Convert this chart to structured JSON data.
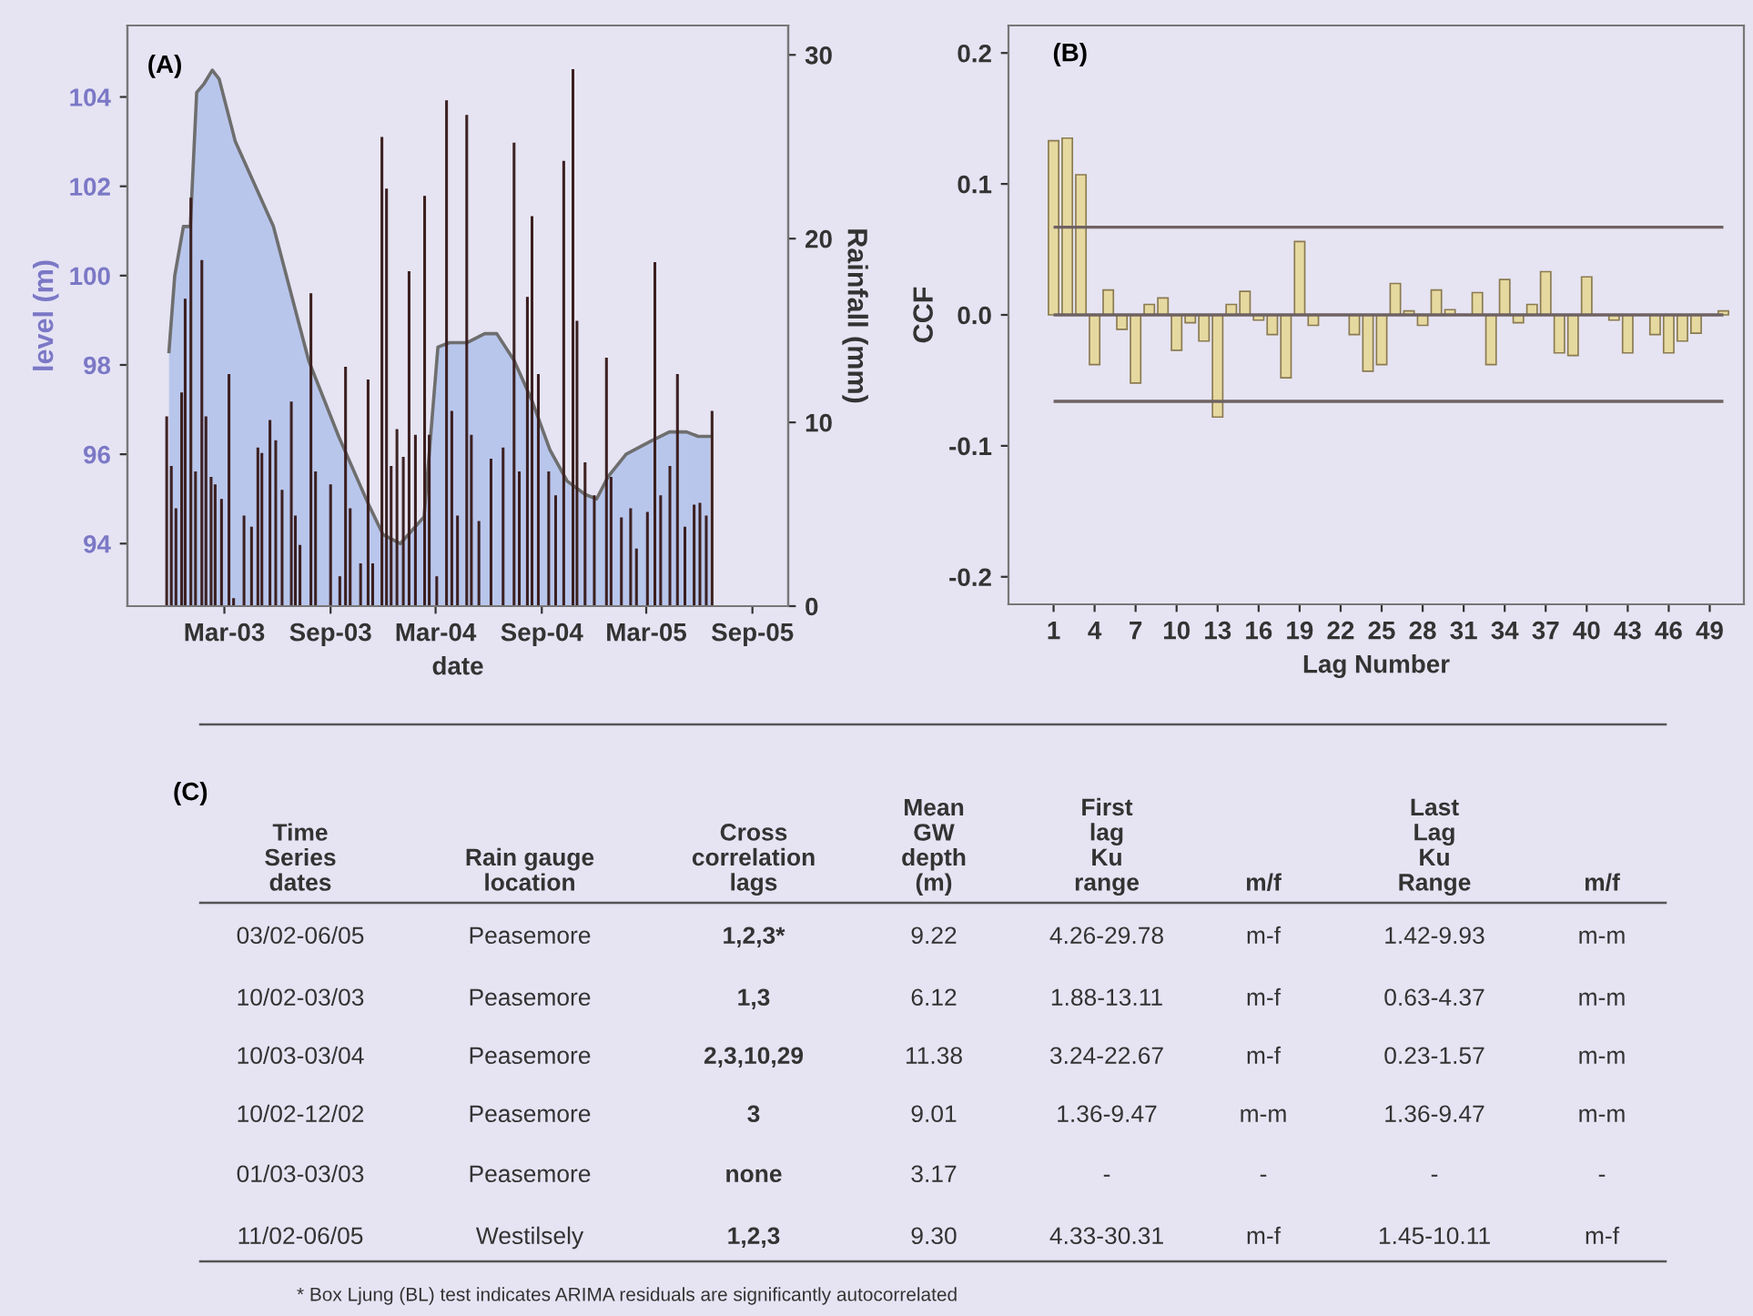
{
  "chart_data": [
    {
      "type": "area",
      "annotations": [
        "(A)"
      ],
      "xlabel": "date",
      "ylabel": "level (m)",
      "y2label": "Rainfall (mm)",
      "xlim": [
        "2002-09-14",
        "2005-11-02"
      ],
      "xticks": [
        {
          "value": "2003-03-01",
          "label": "Mar-03"
        },
        {
          "value": "2003-09-01",
          "label": "Sep-03"
        },
        {
          "value": "2004-03-01",
          "label": "Mar-04"
        },
        {
          "value": "2004-09-01",
          "label": "Sep-04"
        },
        {
          "value": "2005-03-01",
          "label": "Mar-05"
        },
        {
          "value": "2005-09-01",
          "label": "Sep-05"
        }
      ],
      "ylim": [
        92.6,
        105.6
      ],
      "yticks": [
        94,
        96,
        98,
        100,
        102,
        104
      ],
      "y2lim": [
        0,
        31.6
      ],
      "y2ticks": [
        0,
        10,
        20,
        30
      ],
      "series": [
        {
          "type": "area",
          "color": "#b9c6ec",
          "x": [
            "2002-11-25",
            "2002-12-05",
            "2002-12-20",
            "2003-01-01",
            "2003-01-12",
            "2003-01-25",
            "2003-02-08",
            "2003-02-20",
            "2003-03-20",
            "2003-05-25",
            "2003-07-25",
            "2003-09-15",
            "2003-11-05",
            "2003-12-01",
            "2003-12-31",
            "2004-02-10",
            "2004-03-05",
            "2004-03-25",
            "2004-04-25",
            "2004-05-25",
            "2004-06-15",
            "2004-07-15",
            "2004-08-15",
            "2004-09-15",
            "2004-10-15",
            "2004-11-15",
            "2004-12-05",
            "2004-12-25",
            "2005-01-25",
            "2005-03-10",
            "2005-04-10",
            "2005-05-10",
            "2005-05-30",
            "2005-06-20"
          ],
          "values": [
            98.3,
            100.0,
            101.1,
            101.1,
            104.1,
            104.3,
            104.6,
            104.4,
            103.0,
            101.1,
            98.1,
            96.4,
            94.9,
            94.2,
            94.0,
            94.6,
            98.4,
            98.5,
            98.5,
            98.7,
            98.7,
            98.1,
            97.2,
            96.1,
            95.4,
            95.1,
            95.0,
            95.5,
            96.0,
            96.3,
            96.5,
            96.5,
            96.4,
            96.4
          ]
        },
        {
          "type": "bar",
          "axis": "y2",
          "color": "#3b1f1f",
          "x": [
            "2002-11-21",
            "2002-11-29",
            "2002-12-07",
            "2002-12-17",
            "2002-12-23",
            "2003-01-02",
            "2003-01-10",
            "2003-01-21",
            "2003-01-28",
            "2003-02-06",
            "2003-02-13",
            "2003-02-24",
            "2003-03-09",
            "2003-03-17",
            "2003-04-04",
            "2003-04-17",
            "2003-04-28",
            "2003-05-05",
            "2003-05-19",
            "2003-05-29",
            "2003-06-09",
            "2003-06-25",
            "2003-07-02",
            "2003-07-10",
            "2003-07-29",
            "2003-08-06",
            "2003-09-01",
            "2003-09-17",
            "2003-09-27",
            "2003-10-05",
            "2003-10-23",
            "2003-11-05",
            "2003-11-13",
            "2003-11-29",
            "2003-12-07",
            "2003-12-15",
            "2003-12-25",
            "2004-01-05",
            "2004-01-15",
            "2004-01-26",
            "2004-02-11",
            "2004-02-19",
            "2004-03-03",
            "2004-03-20",
            "2004-03-29",
            "2004-04-08",
            "2004-04-24",
            "2004-05-02",
            "2004-05-15",
            "2004-06-05",
            "2004-06-26",
            "2004-07-15",
            "2004-07-24",
            "2004-08-07",
            "2004-08-15",
            "2004-08-26",
            "2004-09-13",
            "2004-09-25",
            "2004-10-09",
            "2004-10-25",
            "2004-11-01",
            "2004-11-15",
            "2004-12-01",
            "2004-12-22",
            "2004-12-30",
            "2005-01-17",
            "2005-02-02",
            "2005-02-12",
            "2005-03-03",
            "2005-03-16",
            "2005-03-26",
            "2005-04-11",
            "2005-04-24",
            "2005-05-07",
            "2005-05-23",
            "2005-06-02",
            "2005-06-13",
            "2005-06-23"
          ],
          "values": [
            10.3,
            7.6,
            5.3,
            11.6,
            16.7,
            22.2,
            7.3,
            18.8,
            10.3,
            7.0,
            6.6,
            5.8,
            12.6,
            0.4,
            4.9,
            4.3,
            8.6,
            8.3,
            10.1,
            9.0,
            6.3,
            11.1,
            4.9,
            3.3,
            17.0,
            7.3,
            6.6,
            1.6,
            13.0,
            5.3,
            2.3,
            12.3,
            2.3,
            25.5,
            22.7,
            7.6,
            9.6,
            8.1,
            18.2,
            9.3,
            22.3,
            9.3,
            1.6,
            27.5,
            10.6,
            4.9,
            26.7,
            9.3,
            4.6,
            8.0,
            8.6,
            25.2,
            7.3,
            16.8,
            21.2,
            12.6,
            7.3,
            6.0,
            24.2,
            29.2,
            15.5,
            7.8,
            6.0,
            13.5,
            7.0,
            4.8,
            5.3,
            3.1,
            5.1,
            18.7,
            6.0,
            7.6,
            12.6,
            4.3,
            5.5,
            5.6,
            4.9,
            10.6
          ]
        }
      ]
    },
    {
      "type": "bar",
      "annotations": [
        "(B)"
      ],
      "xlabel": "Lag Number",
      "ylabel": "CCF",
      "color": "#e6d9a0",
      "x": [
        1,
        2,
        3,
        4,
        5,
        6,
        7,
        8,
        9,
        10,
        11,
        12,
        13,
        14,
        15,
        16,
        17,
        18,
        19,
        20,
        21,
        22,
        23,
        24,
        25,
        26,
        27,
        28,
        29,
        30,
        31,
        32,
        33,
        34,
        35,
        36,
        37,
        38,
        39,
        40,
        41,
        42,
        43,
        44,
        45,
        46,
        47,
        48,
        49,
        50
      ],
      "values": [
        0.133,
        0.135,
        0.107,
        -0.038,
        0.019,
        -0.011,
        -0.052,
        0.008,
        0.013,
        -0.027,
        -0.006,
        -0.02,
        -0.078,
        0.008,
        0.018,
        -0.004,
        -0.015,
        -0.048,
        0.056,
        -0.008,
        null,
        0,
        -0.015,
        -0.043,
        -0.038,
        0.024,
        0.003,
        -0.008,
        0.019,
        0.004,
        null,
        0.017,
        -0.038,
        0.027,
        -0.006,
        0.008,
        0.033,
        -0.029,
        -0.031,
        0.029,
        0,
        -0.004,
        -0.029,
        0,
        -0.015,
        -0.029,
        -0.02,
        -0.014,
        null,
        0.003
      ],
      "xlim": [
        -2.3,
        51.5
      ],
      "xticks": [
        1,
        4,
        7,
        10,
        13,
        16,
        19,
        22,
        25,
        28,
        31,
        34,
        37,
        40,
        43,
        46,
        49
      ],
      "ylim": [
        -0.221,
        0.221
      ],
      "yticks": [
        -0.2,
        -0.1,
        {
          "value": 0,
          "label": "0.0"
        },
        0.1,
        0.2
      ],
      "ref_lines": [
        {
          "axis": "y",
          "value": 0.067
        },
        {
          "axis": "y",
          "value": -0.066
        },
        {
          "axis": "y",
          "value": 0
        }
      ]
    },
    {
      "type": "other",
      "title": "(C)",
      "annotations": [
        "Time\nSeries\ndates",
        "Rain gauge\nlocation",
        "Cross\ncorrelation\nlags",
        "Mean\nGW\ndepth\n(m)",
        "First\nlag\nKu\nrange",
        "m/f",
        "Last\nLag\nKu\nRange",
        "m/f",
        "03/02-06/05",
        "Peasemore",
        "1,2,3*",
        "9.22",
        "4.26-29.78",
        "m-f",
        "1.42-9.93",
        "m-m",
        "10/02-03/03",
        "Peasemore",
        "1,3",
        "6.12",
        "1.88-13.11",
        "m-f",
        "0.63-4.37",
        "m-m",
        "10/03-03/04",
        "Peasemore",
        "2,3,10,29",
        "11.38",
        "3.24-22.67",
        "m-f",
        "0.23-1.57",
        "m-m",
        "10/02-12/02",
        "Peasemore",
        "3",
        "9.01",
        "1.36-9.47",
        "m-m",
        "1.36-9.47",
        "m-m",
        "01/03-03/03",
        "Peasemore",
        "none",
        "3.17",
        "-",
        "-",
        "-",
        "-",
        "11/02-06/05",
        "Westilsely",
        "1,2,3",
        "9.30",
        "4.33-30.31",
        "m-f",
        "1.45-10.11",
        "m-f",
        "* Box Ljung (BL) test indicates ARIMA residuals are significantly autocorrelated"
      ]
    }
  ]
}
